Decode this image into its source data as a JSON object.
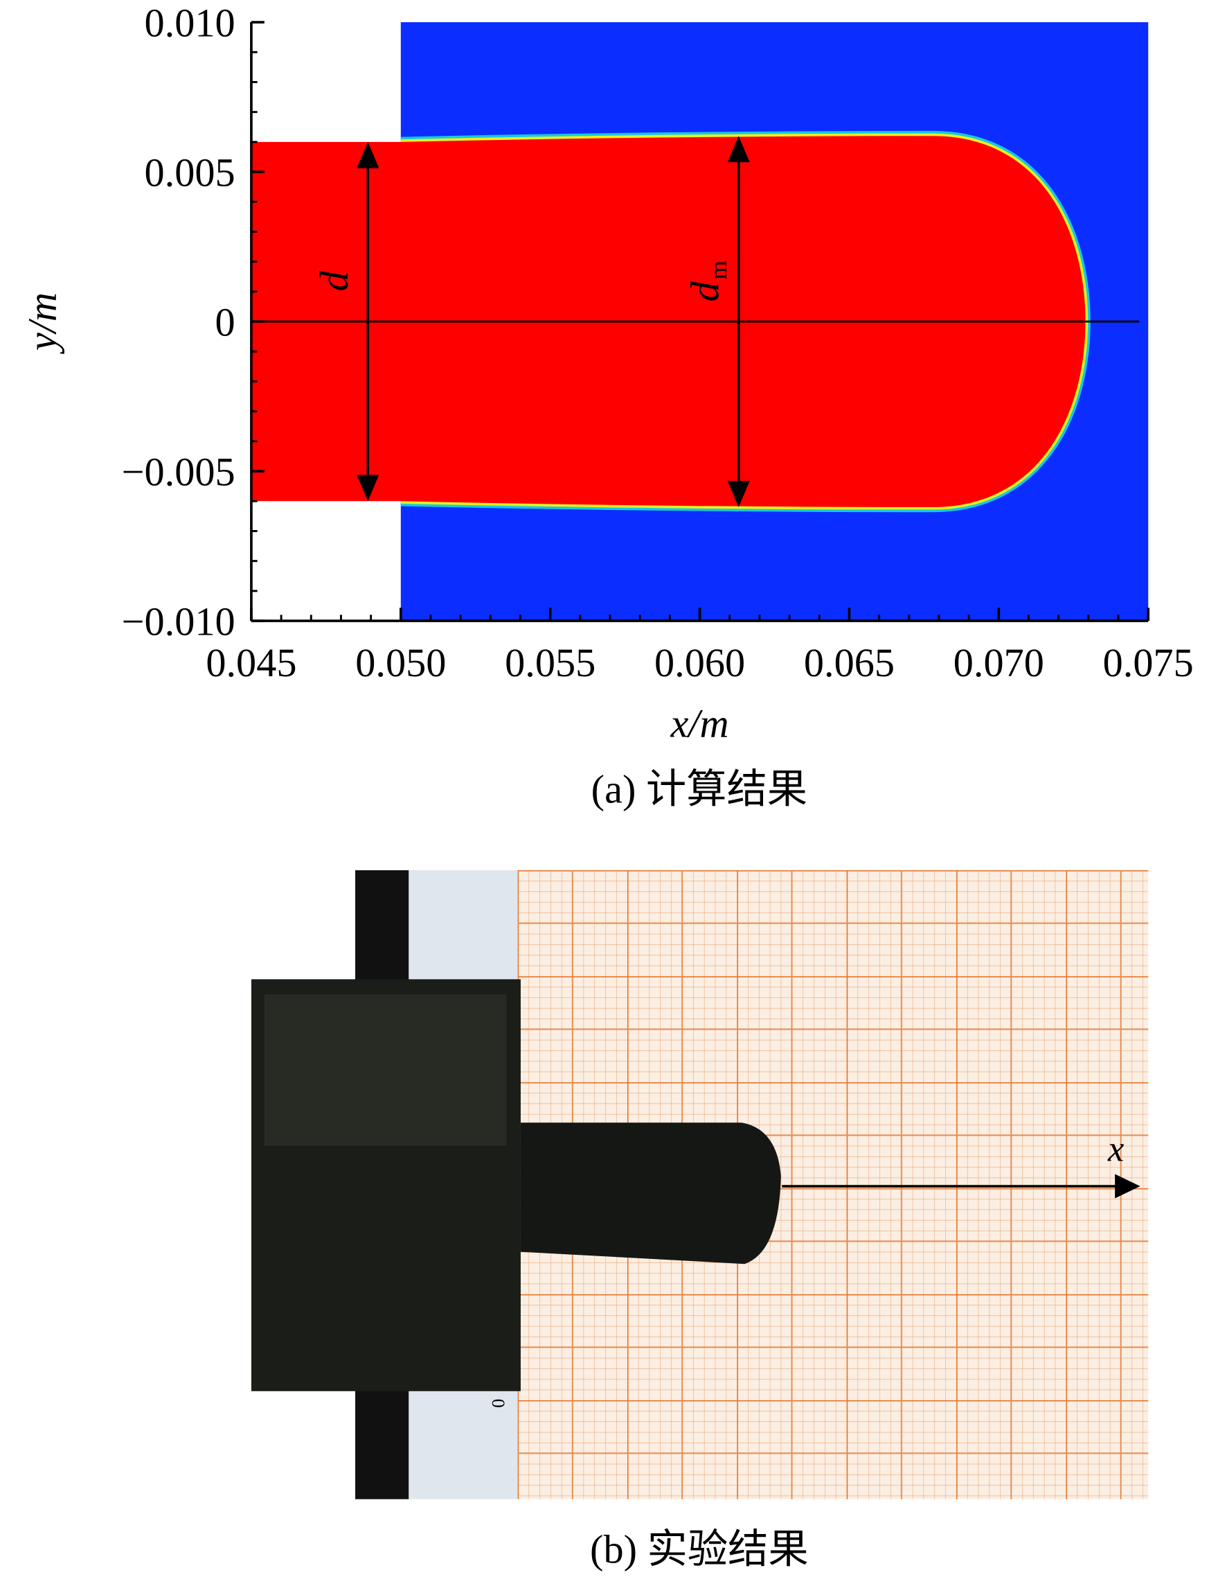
{
  "chart_data": {
    "type": "field",
    "xlabel": "x/m",
    "ylabel": "y/m",
    "caption": "(a) 计算结果",
    "xlim": [
      0.045,
      0.075
    ],
    "ylim": [
      -0.01,
      0.01
    ],
    "xticks": [
      0.045,
      {
        "value": 0.05,
        "label": "0.050"
      },
      0.055,
      {
        "value": 0.06,
        "label": "0.060"
      },
      0.065,
      {
        "value": 0.07,
        "label": "0.070"
      },
      0.075
    ],
    "yticks": [
      {
        "value": 0.01,
        "label": "0.010"
      },
      0.005,
      0,
      {
        "value": -0.005,
        "label": "−0.005"
      },
      {
        "value": -0.01,
        "label": "−0.010"
      }
    ],
    "xminor": 0.001,
    "yminor": 0.001,
    "colors": {
      "liquid": "#ff0000",
      "gas": "#0b2dff"
    },
    "shape": {
      "domain_x0": 0.05,
      "jet_radius": 0.006,
      "max_radius": 0.0062,
      "shoulder_x": 0.0678,
      "tip_x": 0.0729,
      "centerline_end_x": 0.0747
    },
    "annotations": [
      {
        "text": "d",
        "x": 0.0489
      },
      {
        "text": "d",
        "subscript": "m",
        "x": 0.0613
      }
    ]
  },
  "photo": {
    "caption": "(b) 实验结果",
    "arrow_label": "x",
    "scale_label": "0"
  }
}
